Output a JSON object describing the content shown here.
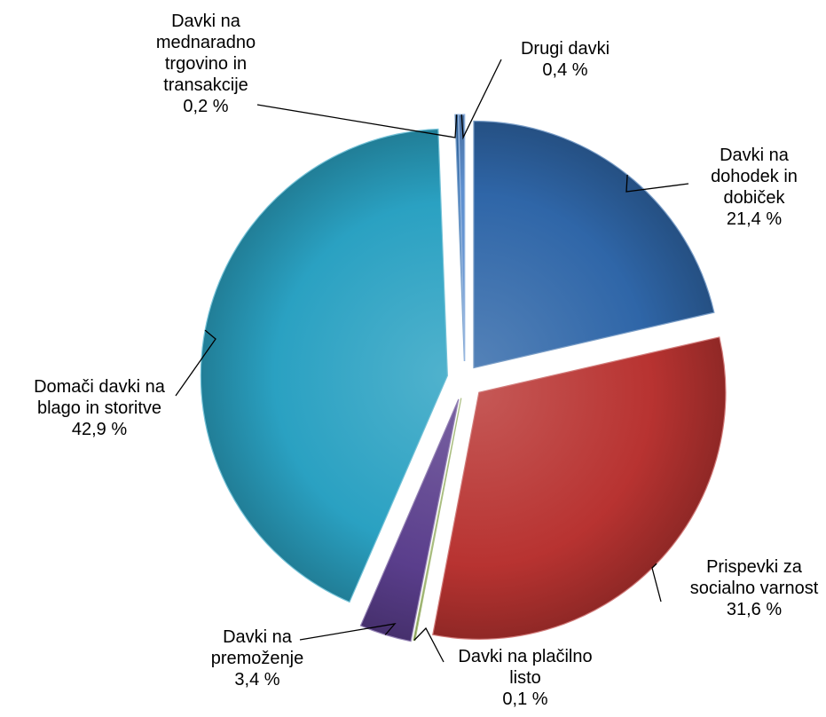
{
  "chart_data": {
    "type": "pie",
    "title": "",
    "slices": [
      {
        "label_lines": [
          "Davki na",
          "dohodek in",
          "dobiček"
        ],
        "value_text": "21,4 %",
        "value": 21.4,
        "color": "#2f66a8"
      },
      {
        "label_lines": [
          "Prispevki za",
          "socialno varnost"
        ],
        "value_text": "31,6 %",
        "value": 31.6,
        "color": "#b83331"
      },
      {
        "label_lines": [
          "Davki na plačilno",
          "listo"
        ],
        "value_text": "0,1 %",
        "value": 0.1,
        "color": "#7a9a3a"
      },
      {
        "label_lines": [
          "Davki na",
          "premoženje"
        ],
        "value_text": "3,4 %",
        "value": 3.4,
        "color": "#5a3e8c"
      },
      {
        "label_lines": [
          "Domači davki na",
          "blago in storitve"
        ],
        "value_text": "42,9 %",
        "value": 42.9,
        "color": "#2aa1c2"
      },
      {
        "label_lines": [
          "Davki na",
          "mednaradno",
          "trgovino in",
          "transakcije"
        ],
        "value_text": "0,2 %",
        "value": 0.2,
        "color": "#3a74b4"
      },
      {
        "label_lines": [
          "Drugi davki"
        ],
        "value_text": "0,4 %",
        "value": 0.4,
        "color": "#5d8fcf"
      }
    ],
    "legend": "none",
    "data_labels": "outside-with-leader-lines"
  }
}
